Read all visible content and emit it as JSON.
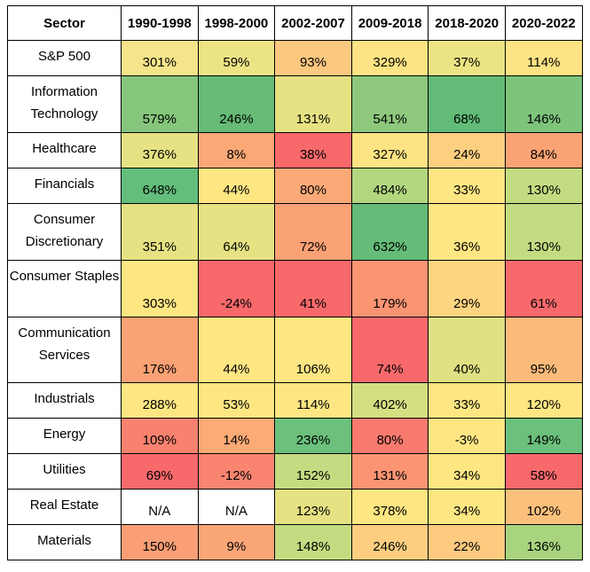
{
  "chart_data": {
    "type": "table",
    "columns": [
      "Sector",
      "1990-1998",
      "1998-2000",
      "2002-2007",
      "2009-2018",
      "2018-2020",
      "2020-2022"
    ],
    "rows": [
      {
        "sector": "S&P 500",
        "values": [
          "301%",
          "59%",
          "93%",
          "329%",
          "37%",
          "114%"
        ],
        "colors": [
          "#f5e48a",
          "#ece484",
          "#fbc87f",
          "#fde383",
          "#ece484",
          "#fde383"
        ]
      },
      {
        "sector": "Information Technology",
        "values": [
          "579%",
          "246%",
          "131%",
          "541%",
          "68%",
          "146%"
        ],
        "colors": [
          "#86c67c",
          "#66bb77",
          "#e6e283",
          "#8ec87d",
          "#62bb76",
          "#7ec47b"
        ]
      },
      {
        "sector": "Healthcare",
        "values": [
          "376%",
          "8%",
          "38%",
          "327%",
          "24%",
          "84%"
        ],
        "colors": [
          "#e6e283",
          "#fba876",
          "#f8696b",
          "#fde383",
          "#fdcf80",
          "#fba374"
        ]
      },
      {
        "sector": "Financials",
        "values": [
          "648%",
          "44%",
          "80%",
          "484%",
          "33%",
          "130%"
        ],
        "colors": [
          "#63be7b",
          "#fee683",
          "#fbaa77",
          "#b2d77f",
          "#fee683",
          "#c4dc81"
        ]
      },
      {
        "sector": "Consumer Discretionary",
        "values": [
          "351%",
          "64%",
          "72%",
          "632%",
          "36%",
          "130%"
        ],
        "colors": [
          "#e6e283",
          "#e6e283",
          "#fba275",
          "#64bc78",
          "#fee683",
          "#c4dc81"
        ]
      },
      {
        "sector": "Consumer Staples",
        "values": [
          "303%",
          "-24%",
          "41%",
          "179%",
          "29%",
          "61%"
        ],
        "colors": [
          "#fee683",
          "#f8696b",
          "#f8696b",
          "#fa9473",
          "#fed580",
          "#f8696b"
        ]
      },
      {
        "sector": "Communication Services",
        "values": [
          "176%",
          "44%",
          "106%",
          "74%",
          "40%",
          "95%"
        ],
        "colors": [
          "#fba275",
          "#fee683",
          "#fee683",
          "#f8696b",
          "#dfe183",
          "#fcbb7b"
        ]
      },
      {
        "sector": "Industrials",
        "values": [
          "288%",
          "53%",
          "114%",
          "402%",
          "33%",
          "120%"
        ],
        "colors": [
          "#fee683",
          "#fee683",
          "#fee683",
          "#d4df82",
          "#fee683",
          "#fee683"
        ]
      },
      {
        "sector": "Energy",
        "values": [
          "109%",
          "14%",
          "236%",
          "80%",
          "-3%",
          "149%"
        ],
        "colors": [
          "#f8826f",
          "#fcaa76",
          "#6bc07b",
          "#f87a6e",
          "#fee683",
          "#6bc07b"
        ]
      },
      {
        "sector": "Utilities",
        "values": [
          "69%",
          "-12%",
          "152%",
          "131%",
          "34%",
          "58%"
        ],
        "colors": [
          "#f8696b",
          "#f98570",
          "#c4dc81",
          "#fa9473",
          "#fee683",
          "#f8696b"
        ]
      },
      {
        "sector": "Real Estate",
        "values": [
          "N/A",
          "N/A",
          "123%",
          "378%",
          "34%",
          "102%"
        ],
        "colors": [
          "#ffffff",
          "#ffffff",
          "#e6e283",
          "#fee683",
          "#fee683",
          "#fbc07c"
        ]
      },
      {
        "sector": "Materials",
        "values": [
          "150%",
          "9%",
          "148%",
          "246%",
          "22%",
          "136%"
        ],
        "colors": [
          "#fa9f75",
          "#fba677",
          "#c4dc81",
          "#fdce80",
          "#fdcb7f",
          "#a8d47f"
        ]
      }
    ]
  }
}
